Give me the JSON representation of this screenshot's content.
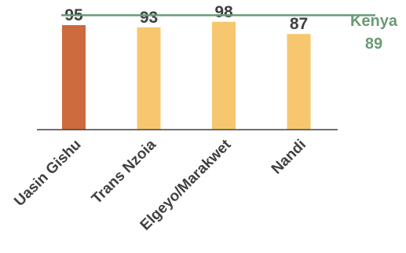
{
  "chart_data": {
    "type": "bar",
    "categories": [
      "Uasin Gishu",
      "Trans Nzoia",
      "Elgeyo/Marakwet",
      "Nandi"
    ],
    "values": [
      95,
      93,
      98,
      87
    ],
    "value_labels": [
      "95",
      "93",
      "98",
      "87"
    ],
    "bar_colors": [
      "#cd6a3e",
      "#f7c76f",
      "#f7c76f",
      "#f7c76f"
    ],
    "ylim": [
      0,
      100
    ],
    "grid": false,
    "reference_line": {
      "name": "Kenya",
      "value": 89,
      "value_label": "89",
      "color": "#6a9a77"
    },
    "axis_color": "#404040",
    "title": "",
    "xlabel": "",
    "ylabel": ""
  }
}
